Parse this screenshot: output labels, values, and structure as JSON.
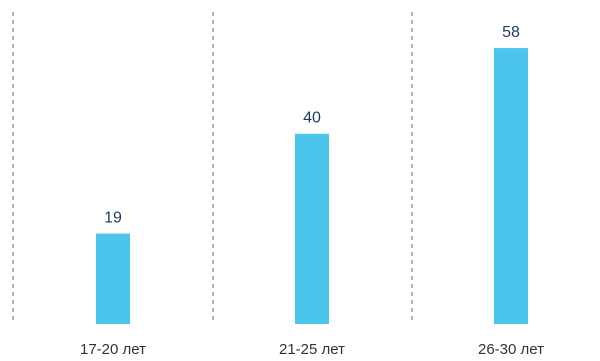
{
  "chart_data": {
    "type": "bar",
    "categories": [
      "17-20 лет",
      "21-25 лет",
      "26-30 лет"
    ],
    "values": [
      19,
      40,
      58
    ],
    "title": "",
    "xlabel": "",
    "ylabel": "",
    "ylim": [
      0,
      66
    ],
    "grid": false,
    "bar_color": "#4BC5EC",
    "label_color": "#1F3B5C"
  }
}
